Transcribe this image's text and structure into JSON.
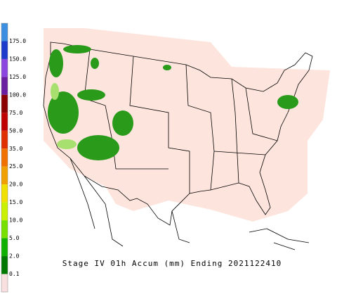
{
  "title": "Stage IV 01h Accum (mm) Ending 2021122410",
  "legend": {
    "labels": [
      "175.0",
      "150.0",
      "125.0",
      "100.0",
      "75.0",
      "50.0",
      "35.0",
      "25.0",
      "20.0",
      "15.0",
      "10.0",
      "5.0",
      "2.0",
      "0.1"
    ],
    "colors": [
      "#3c8fe0",
      "#1e3ccc",
      "#8c46e0",
      "#6a1fa0",
      "#8b0000",
      "#c00000",
      "#e03000",
      "#f07000",
      "#f0a000",
      "#f0e000",
      "#c8f000",
      "#78e000",
      "#10b000",
      "#007800",
      "#f8e0e0"
    ]
  }
}
